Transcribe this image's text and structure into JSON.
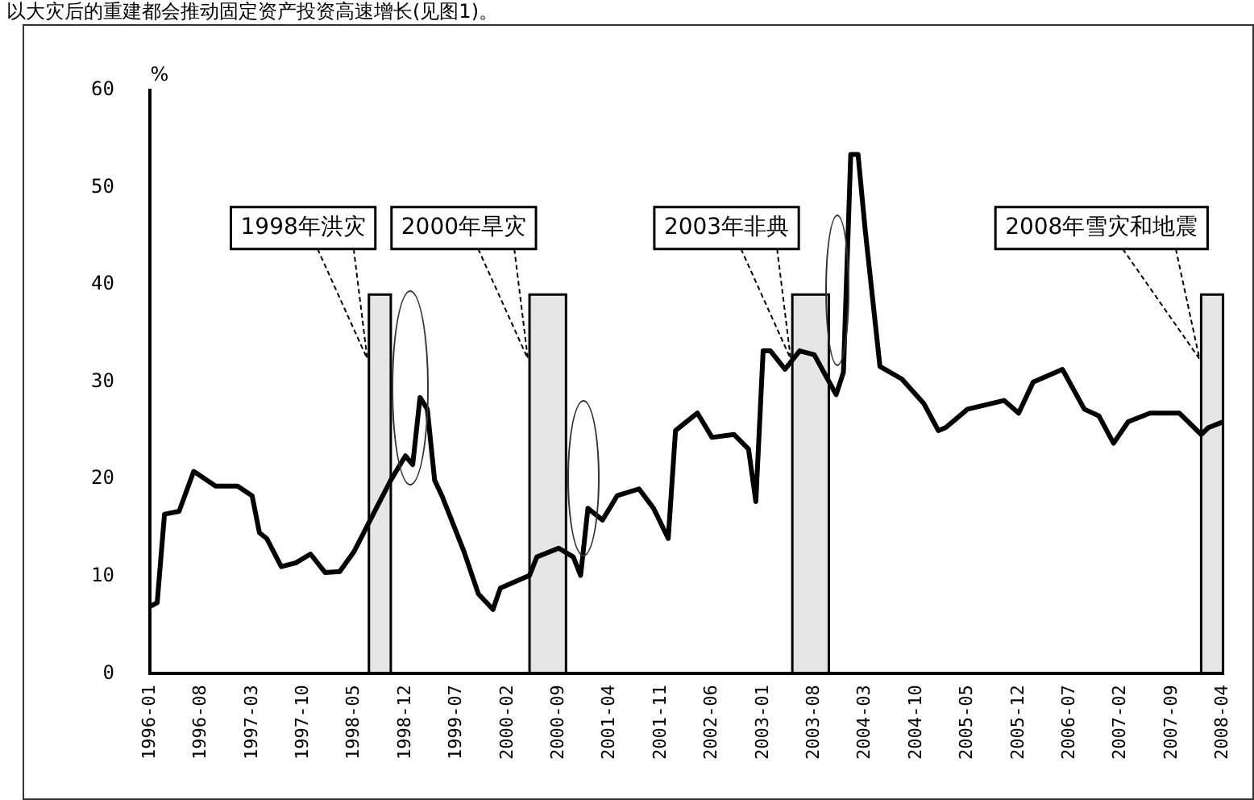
{
  "chart_data": {
    "type": "line",
    "ylabel": "%",
    "annotations": [
      "以大灾后的重建都会推动固定资产投资高速增长(见图1)。"
    ],
    "x": [
      "1996-01",
      "1996-02",
      "1996-03",
      "1996-05",
      "1996-07",
      "1996-10",
      "1997-01",
      "1997-03",
      "1997-04",
      "1997-05",
      "1997-07",
      "1997-09",
      "1997-11",
      "1998-01",
      "1998-03",
      "1998-05",
      "1998-08",
      "1998-10",
      "1998-12",
      "1999-01",
      "1999-02",
      "1999-03",
      "1999-04",
      "1999-05",
      "1999-08",
      "1999-10",
      "1999-12",
      "2000-01",
      "2000-05",
      "2000-06",
      "2000-09",
      "2000-11",
      "2000-12",
      "2001-01",
      "2001-03",
      "2001-05",
      "2001-08",
      "2001-10",
      "2001-12",
      "2002-01",
      "2002-04",
      "2002-06",
      "2002-09",
      "2002-11",
      "2002-12",
      "2003-01",
      "2003-02",
      "2003-04",
      "2003-06",
      "2003-08",
      "2003-11",
      "2003-12",
      "2004-01",
      "2004-02",
      "2004-03",
      "2004-05",
      "2004-08",
      "2004-11",
      "2005-01",
      "2005-02",
      "2005-05",
      "2005-10",
      "2005-12",
      "2006-02",
      "2006-06",
      "2006-09",
      "2006-11",
      "2007-01",
      "2007-03",
      "2007-06",
      "2007-10",
      "2008-01",
      "2008-02",
      "2008-04"
    ],
    "series": [
      {
        "color": "#000000",
        "values": [
          6.9,
          7.3,
          16.4,
          16.7,
          20.8,
          19.3,
          19.3,
          18.3,
          14.5,
          13.9,
          11,
          11.4,
          12.3,
          10.4,
          10.5,
          12.6,
          17,
          19.9,
          22.4,
          21.5,
          28.4,
          27.2,
          19.9,
          18.3,
          12.6,
          8.2,
          6.6,
          8.8,
          10.1,
          12,
          12.9,
          12,
          10.1,
          17,
          15.8,
          18.3,
          19,
          17,
          13.9,
          25,
          26.8,
          24.3,
          24.6,
          23.1,
          17.7,
          33.2,
          33.2,
          31.3,
          33.2,
          32.8,
          28.7,
          31,
          53.4,
          53.4,
          45.5,
          31.6,
          30.3,
          27.8,
          25,
          25.3,
          27.2,
          28.1,
          26.8,
          30,
          31.3,
          27.2,
          26.5,
          23.7,
          25.9,
          26.8,
          26.8,
          24.6,
          25.3,
          25.9
        ]
      }
    ],
    "xlim": [
      "1996-01",
      "2008-04"
    ],
    "xticks": [
      "1996-01",
      "1996-08",
      "1997-03",
      "1997-10",
      "1998-05",
      "1998-12",
      "1999-07",
      "2000-02",
      "2000-09",
      "2001-04",
      "2001-11",
      "2002-06",
      "2003-01",
      "2003-08",
      "2004-03",
      "2004-10",
      "2005-05",
      "2005-12",
      "2006-07",
      "2007-02",
      "2007-09",
      "2008-04"
    ],
    "ylim": [
      0,
      60
    ],
    "yticks": [
      0,
      10,
      20,
      30,
      40,
      50,
      60
    ],
    "bands": [
      {
        "axis": "x",
        "from": "1998-07",
        "to": "1998-10",
        "label": "1998年洪灾",
        "color": "#000000"
      },
      {
        "axis": "x",
        "from": "2000-05",
        "to": "2000-10",
        "label": "2000年旱灾",
        "color": "#000000"
      },
      {
        "axis": "x",
        "from": "2003-05",
        "to": "2003-10",
        "label": "2003年非典",
        "color": "#000000"
      },
      {
        "axis": "x",
        "from": "2008-01",
        "to": "2008-04",
        "label": "2008年雪灾和地震",
        "color": "#000000"
      }
    ],
    "grid": false,
    "legend": false,
    "marker": "none",
    "line_style": "solid"
  }
}
